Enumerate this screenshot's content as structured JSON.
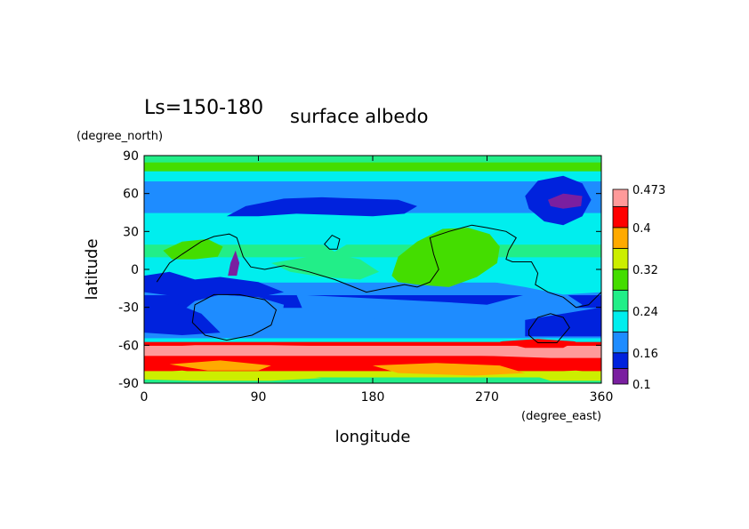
{
  "chart_data": {
    "type": "heatmap",
    "title": "Ls=150-180",
    "subtitle": "surface albedo",
    "xlabel": "longitude",
    "ylabel": "latitude",
    "xunit": "(degree_east)",
    "yunit": "(degree_north)",
    "xlim": [
      0,
      360
    ],
    "ylim": [
      -90,
      90
    ],
    "x_ticks": [
      "0",
      "90",
      "180",
      "270",
      "360"
    ],
    "y_ticks": [
      "90",
      "60",
      "30",
      "0",
      "-30",
      "-60",
      "-90"
    ],
    "grid": false,
    "colorbar": {
      "levels": [
        0.1,
        0.13,
        0.16,
        0.2,
        0.24,
        0.28,
        0.32,
        0.36,
        0.4,
        0.44,
        0.473
      ],
      "tick_labels": [
        "0.1",
        "0.16",
        "0.24",
        "0.32",
        "0.4",
        "0.473"
      ],
      "colors": [
        "#7a1fa0",
        "#0022dd",
        "#1e8cff",
        "#00eeee",
        "#22ee88",
        "#44dd00",
        "#ccee00",
        "#ffaa00",
        "#ff0000",
        "#ff9a9a"
      ]
    },
    "zonal_bands": [
      {
        "lat": [
          -90,
          -85
        ],
        "level": 4
      },
      {
        "lat": [
          -85,
          -80
        ],
        "level": 6
      },
      {
        "lat": [
          -80,
          -75
        ],
        "level": 8
      },
      {
        "lat": [
          -75,
          -68
        ],
        "level": 8
      },
      {
        "lat": [
          -68,
          -60
        ],
        "level": 9
      },
      {
        "lat": [
          -60,
          -57
        ],
        "level": 8
      },
      {
        "lat": [
          -57,
          -54
        ],
        "level": 3
      },
      {
        "lat": [
          -54,
          -40
        ],
        "level": 2
      },
      {
        "lat": [
          -40,
          -30
        ],
        "level": 2
      },
      {
        "lat": [
          -30,
          -20
        ],
        "level": 1
      },
      {
        "lat": [
          -20,
          -10
        ],
        "level": 2
      },
      {
        "lat": [
          -10,
          0
        ],
        "level": 3
      },
      {
        "lat": [
          0,
          10
        ],
        "level": 3
      },
      {
        "lat": [
          10,
          20
        ],
        "level": 4
      },
      {
        "lat": [
          20,
          30
        ],
        "level": 3
      },
      {
        "lat": [
          30,
          45
        ],
        "level": 3
      },
      {
        "lat": [
          45,
          60
        ],
        "level": 2
      },
      {
        "lat": [
          60,
          70
        ],
        "level": 2
      },
      {
        "lat": [
          70,
          78
        ],
        "level": 3
      },
      {
        "lat": [
          78,
          85
        ],
        "level": 5
      },
      {
        "lat": [
          85,
          90
        ],
        "level": 4
      }
    ],
    "regions": [
      {
        "level": 5,
        "points": [
          [
            195,
            -5
          ],
          [
            200,
            10
          ],
          [
            215,
            22
          ],
          [
            235,
            32
          ],
          [
            255,
            33
          ],
          [
            272,
            28
          ],
          [
            280,
            18
          ],
          [
            278,
            5
          ],
          [
            262,
            -6
          ],
          [
            240,
            -14
          ],
          [
            215,
            -12
          ],
          [
            200,
            -10
          ]
        ]
      },
      {
        "level": 5,
        "points": [
          [
            15,
            15
          ],
          [
            30,
            22
          ],
          [
            50,
            24
          ],
          [
            62,
            18
          ],
          [
            58,
            10
          ],
          [
            40,
            8
          ],
          [
            22,
            8
          ]
        ]
      },
      {
        "level": 4,
        "points": [
          [
            100,
            5
          ],
          [
            130,
            10
          ],
          [
            150,
            12
          ],
          [
            170,
            8
          ],
          [
            185,
            -2
          ],
          [
            170,
            -8
          ],
          [
            140,
            -6
          ],
          [
            115,
            -2
          ]
        ]
      },
      {
        "level": 1,
        "points": [
          [
            65,
            42
          ],
          [
            80,
            50
          ],
          [
            110,
            56
          ],
          [
            140,
            57
          ],
          [
            170,
            56
          ],
          [
            200,
            55
          ],
          [
            215,
            50
          ],
          [
            205,
            44
          ],
          [
            180,
            42
          ],
          [
            150,
            43
          ],
          [
            120,
            44
          ],
          [
            90,
            42
          ]
        ]
      },
      {
        "level": 1,
        "points": [
          [
            300,
            58
          ],
          [
            310,
            70
          ],
          [
            330,
            74
          ],
          [
            345,
            68
          ],
          [
            352,
            55
          ],
          [
            345,
            42
          ],
          [
            330,
            35
          ],
          [
            315,
            38
          ],
          [
            303,
            48
          ]
        ]
      },
      {
        "level": 0,
        "points": [
          [
            318,
            55
          ],
          [
            330,
            60
          ],
          [
            345,
            58
          ],
          [
            344,
            50
          ],
          [
            330,
            48
          ],
          [
            320,
            50
          ]
        ]
      },
      {
        "level": 0,
        "points": [
          [
            66,
            -5
          ],
          [
            68,
            5
          ],
          [
            72,
            15
          ],
          [
            75,
            5
          ],
          [
            73,
            -5
          ]
        ]
      },
      {
        "level": 0,
        "points": [
          [
            88,
            -14
          ],
          [
            94,
            -12
          ],
          [
            98,
            -17
          ],
          [
            92,
            -19
          ]
        ]
      },
      {
        "level": 2,
        "points": [
          [
            40,
            -25
          ],
          [
            60,
            -20
          ],
          [
            90,
            -22
          ],
          [
            110,
            -28
          ],
          [
            108,
            -40
          ],
          [
            90,
            -48
          ],
          [
            60,
            -48
          ],
          [
            40,
            -42
          ],
          [
            30,
            -33
          ]
        ]
      },
      {
        "level": 2,
        "points": [
          [
            120,
            -20
          ],
          [
            160,
            -22
          ],
          [
            200,
            -24
          ],
          [
            240,
            -26
          ],
          [
            270,
            -28
          ],
          [
            300,
            -20
          ],
          [
            330,
            -18
          ],
          [
            345,
            -28
          ],
          [
            320,
            -40
          ],
          [
            290,
            -44
          ],
          [
            250,
            -43
          ],
          [
            200,
            -40
          ],
          [
            160,
            -38
          ],
          [
            125,
            -32
          ]
        ]
      },
      {
        "level": 1,
        "points": [
          [
            0,
            -5
          ],
          [
            20,
            -2
          ],
          [
            40,
            -8
          ],
          [
            60,
            -6
          ],
          [
            90,
            -10
          ],
          [
            110,
            -18
          ],
          [
            90,
            -22
          ],
          [
            60,
            -20
          ],
          [
            30,
            -22
          ],
          [
            0,
            -18
          ]
        ]
      },
      {
        "level": 1,
        "points": [
          [
            0,
            -30
          ],
          [
            20,
            -25
          ],
          [
            45,
            -35
          ],
          [
            60,
            -50
          ],
          [
            30,
            -52
          ],
          [
            0,
            -50
          ]
        ]
      },
      {
        "level": 1,
        "points": [
          [
            300,
            -40
          ],
          [
            330,
            -35
          ],
          [
            360,
            -30
          ],
          [
            360,
            -53
          ],
          [
            330,
            -53
          ],
          [
            300,
            -53
          ]
        ]
      },
      {
        "level": 3,
        "points": [
          [
            270,
            -2
          ],
          [
            300,
            2
          ],
          [
            330,
            -5
          ],
          [
            360,
            -2
          ],
          [
            360,
            -18
          ],
          [
            330,
            -20
          ],
          [
            300,
            -14
          ],
          [
            275,
            -10
          ]
        ]
      },
      {
        "level": 3,
        "points": [
          [
            140,
            20
          ],
          [
            150,
            25
          ],
          [
            160,
            20
          ],
          [
            150,
            14
          ]
        ]
      },
      {
        "level": 7,
        "points": [
          [
            20,
            -75
          ],
          [
            60,
            -72
          ],
          [
            100,
            -76
          ],
          [
            90,
            -80
          ],
          [
            50,
            -80
          ]
        ]
      },
      {
        "level": 7,
        "points": [
          [
            180,
            -76
          ],
          [
            230,
            -74
          ],
          [
            280,
            -76
          ],
          [
            300,
            -82
          ],
          [
            260,
            -84
          ],
          [
            200,
            -82
          ]
        ]
      },
      {
        "level": 6,
        "points": [
          [
            0,
            -82
          ],
          [
            30,
            -80
          ],
          [
            60,
            -84
          ],
          [
            100,
            -82
          ],
          [
            140,
            -86
          ],
          [
            100,
            -88
          ],
          [
            40,
            -88
          ],
          [
            0,
            -87
          ]
        ]
      },
      {
        "level": 6,
        "points": [
          [
            300,
            -82
          ],
          [
            340,
            -80
          ],
          [
            360,
            -82
          ],
          [
            360,
            -88
          ],
          [
            320,
            -88
          ]
        ]
      },
      {
        "level": 9,
        "points": [
          [
            0,
            -62
          ],
          [
            40,
            -60
          ],
          [
            100,
            -60
          ],
          [
            160,
            -61
          ],
          [
            220,
            -62
          ],
          [
            280,
            -62
          ],
          [
            300,
            -64
          ],
          [
            360,
            -62
          ],
          [
            360,
            -70
          ],
          [
            320,
            -70
          ],
          [
            260,
            -68
          ],
          [
            200,
            -67
          ],
          [
            140,
            -67
          ],
          [
            80,
            -66
          ],
          [
            20,
            -67
          ],
          [
            0,
            -68
          ]
        ]
      },
      {
        "level": 8,
        "points": [
          [
            280,
            -57
          ],
          [
            310,
            -55
          ],
          [
            340,
            -57
          ],
          [
            330,
            -62
          ],
          [
            300,
            -62
          ]
        ]
      }
    ],
    "contours": [
      {
        "points": [
          [
            10,
            -10
          ],
          [
            20,
            5
          ],
          [
            30,
            12
          ],
          [
            45,
            22
          ],
          [
            55,
            26
          ],
          [
            67,
            28
          ],
          [
            73,
            25
          ],
          [
            78,
            10
          ],
          [
            84,
            2
          ],
          [
            95,
            0
          ],
          [
            110,
            3
          ],
          [
            130,
            -2
          ],
          [
            150,
            -8
          ],
          [
            165,
            -14
          ],
          [
            175,
            -18
          ],
          [
            190,
            -15
          ],
          [
            205,
            -12
          ],
          [
            215,
            -14
          ],
          [
            225,
            -10
          ],
          [
            232,
            0
          ],
          [
            228,
            12
          ],
          [
            225,
            25
          ],
          [
            240,
            30
          ],
          [
            258,
            35
          ],
          [
            270,
            33
          ],
          [
            285,
            30
          ],
          [
            293,
            25
          ],
          [
            287,
            15
          ],
          [
            285,
            8
          ],
          [
            290,
            6
          ],
          [
            305,
            6
          ],
          [
            310,
            -3
          ],
          [
            308,
            -12
          ],
          [
            318,
            -18
          ],
          [
            330,
            -22
          ],
          [
            340,
            -30
          ],
          [
            350,
            -28
          ],
          [
            360,
            -18
          ]
        ]
      },
      {
        "points": [
          [
            40,
            -28
          ],
          [
            55,
            -20
          ],
          [
            75,
            -20
          ],
          [
            95,
            -24
          ],
          [
            104,
            -32
          ],
          [
            100,
            -44
          ],
          [
            85,
            -52
          ],
          [
            65,
            -56
          ],
          [
            48,
            -52
          ],
          [
            38,
            -42
          ]
        ]
      },
      {
        "points": [
          [
            303,
            -48
          ],
          [
            310,
            -38
          ],
          [
            320,
            -35
          ],
          [
            330,
            -38
          ],
          [
            335,
            -46
          ],
          [
            325,
            -58
          ],
          [
            310,
            -58
          ],
          [
            303,
            -52
          ]
        ]
      },
      {
        "points": [
          [
            142,
            20
          ],
          [
            148,
            27
          ],
          [
            154,
            24
          ],
          [
            152,
            16
          ],
          [
            146,
            16
          ]
        ]
      }
    ]
  }
}
